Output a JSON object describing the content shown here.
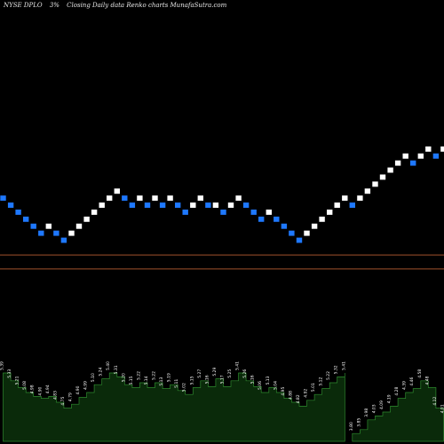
{
  "header": {
    "ticker": "NYSE DPLO",
    "pct": "3%",
    "desc": "Closing Daily data  Renko  charts MunafaSutra.com"
  },
  "chart_data": {
    "type": "renko",
    "up_color": "#ffffff",
    "down_color": "#1e78ff",
    "hline_color": "#a0522d",
    "volume_fill": "#0a2a0a",
    "volume_stroke": "#2e8b2e",
    "hlines_level": [
      -1.5,
      0.5
    ],
    "bricks": [
      {
        "d": "down",
        "v": 9
      },
      {
        "d": "down",
        "v": 8
      },
      {
        "d": "down",
        "v": 7
      },
      {
        "d": "down",
        "v": 6
      },
      {
        "d": "down",
        "v": 5
      },
      {
        "d": "down",
        "v": 4
      },
      {
        "d": "up",
        "v": 5
      },
      {
        "d": "down",
        "v": 4
      },
      {
        "d": "down",
        "v": 3
      },
      {
        "d": "up",
        "v": 4
      },
      {
        "d": "up",
        "v": 5
      },
      {
        "d": "up",
        "v": 6
      },
      {
        "d": "up",
        "v": 7
      },
      {
        "d": "up",
        "v": 8
      },
      {
        "d": "up",
        "v": 9
      },
      {
        "d": "up",
        "v": 10
      },
      {
        "d": "down",
        "v": 9
      },
      {
        "d": "down",
        "v": 8
      },
      {
        "d": "up",
        "v": 9
      },
      {
        "d": "down",
        "v": 8
      },
      {
        "d": "up",
        "v": 9
      },
      {
        "d": "down",
        "v": 8
      },
      {
        "d": "up",
        "v": 9
      },
      {
        "d": "down",
        "v": 8
      },
      {
        "d": "down",
        "v": 7
      },
      {
        "d": "up",
        "v": 8
      },
      {
        "d": "up",
        "v": 9
      },
      {
        "d": "down",
        "v": 8
      },
      {
        "d": "up",
        "v": 8
      },
      {
        "d": "down",
        "v": 7
      },
      {
        "d": "up",
        "v": 8
      },
      {
        "d": "up",
        "v": 9
      },
      {
        "d": "down",
        "v": 8
      },
      {
        "d": "down",
        "v": 7
      },
      {
        "d": "down",
        "v": 6
      },
      {
        "d": "up",
        "v": 7
      },
      {
        "d": "down",
        "v": 6
      },
      {
        "d": "down",
        "v": 5
      },
      {
        "d": "down",
        "v": 4
      },
      {
        "d": "down",
        "v": 3
      },
      {
        "d": "up",
        "v": 4
      },
      {
        "d": "up",
        "v": 5
      },
      {
        "d": "up",
        "v": 6
      },
      {
        "d": "up",
        "v": 7
      },
      {
        "d": "up",
        "v": 8
      },
      {
        "d": "up",
        "v": 9
      },
      {
        "d": "down",
        "v": 8
      },
      {
        "d": "up",
        "v": 9
      },
      {
        "d": "up",
        "v": 10
      },
      {
        "d": "up",
        "v": 11
      },
      {
        "d": "up",
        "v": 12
      },
      {
        "d": "up",
        "v": 13
      },
      {
        "d": "up",
        "v": 14
      },
      {
        "d": "up",
        "v": 15
      },
      {
        "d": "down",
        "v": 14
      },
      {
        "d": "up",
        "v": 15
      },
      {
        "d": "up",
        "v": 16
      },
      {
        "d": "down",
        "v": 15
      },
      {
        "d": "up",
        "v": 16
      }
    ],
    "volume": [
      {
        "v": 0.7,
        "label": "5.39"
      },
      {
        "v": 0.62,
        "label": "5.33"
      },
      {
        "v": 0.55,
        "label": "5.21"
      },
      {
        "v": 0.5,
        "label": "5.08"
      },
      {
        "v": 0.46,
        "label": "4.98"
      },
      {
        "v": 0.44,
        "label": "4.90"
      },
      {
        "v": 0.46,
        "label": "4.94"
      },
      {
        "v": 0.4,
        "label": "4.83"
      },
      {
        "v": 0.34,
        "label": "4.75"
      },
      {
        "v": 0.38,
        "label": "4.79"
      },
      {
        "v": 0.45,
        "label": "4.90"
      },
      {
        "v": 0.5,
        "label": "4.99"
      },
      {
        "v": 0.58,
        "label": "5.10"
      },
      {
        "v": 0.64,
        "label": "5.24"
      },
      {
        "v": 0.7,
        "label": "5.40"
      },
      {
        "v": 0.66,
        "label": "5.31"
      },
      {
        "v": 0.58,
        "label": "5.20"
      },
      {
        "v": 0.55,
        "label": "5.15"
      },
      {
        "v": 0.6,
        "label": "5.22"
      },
      {
        "v": 0.55,
        "label": "5.14"
      },
      {
        "v": 0.6,
        "label": "5.22"
      },
      {
        "v": 0.54,
        "label": "5.13"
      },
      {
        "v": 0.58,
        "label": "5.19"
      },
      {
        "v": 0.52,
        "label": "5.11"
      },
      {
        "v": 0.48,
        "label": "5.02"
      },
      {
        "v": 0.55,
        "label": "5.15"
      },
      {
        "v": 0.62,
        "label": "5.27"
      },
      {
        "v": 0.56,
        "label": "5.16"
      },
      {
        "v": 0.64,
        "label": "5.29"
      },
      {
        "v": 0.56,
        "label": "5.17"
      },
      {
        "v": 0.62,
        "label": "5.25"
      },
      {
        "v": 0.7,
        "label": "5.41"
      },
      {
        "v": 0.62,
        "label": "5.26"
      },
      {
        "v": 0.56,
        "label": "5.16"
      },
      {
        "v": 0.5,
        "label": "5.06"
      },
      {
        "v": 0.55,
        "label": "5.13"
      },
      {
        "v": 0.5,
        "label": "5.04"
      },
      {
        "v": 0.44,
        "label": "4.95"
      },
      {
        "v": 0.4,
        "label": "4.88"
      },
      {
        "v": 0.36,
        "label": "4.82"
      },
      {
        "v": 0.42,
        "label": "4.92"
      },
      {
        "v": 0.48,
        "label": "5.01"
      },
      {
        "v": 0.54,
        "label": "5.12"
      },
      {
        "v": 0.6,
        "label": "5.22"
      },
      {
        "v": 0.66,
        "label": "5.32"
      },
      {
        "v": 0.7,
        "label": "5.41"
      },
      {
        "v": 0.08,
        "label": "3.80"
      },
      {
        "v": 0.12,
        "label": "3.85"
      },
      {
        "v": 0.22,
        "label": "3.98"
      },
      {
        "v": 0.26,
        "label": "4.03"
      },
      {
        "v": 0.3,
        "label": "4.09"
      },
      {
        "v": 0.36,
        "label": "4.19"
      },
      {
        "v": 0.44,
        "label": "4.28"
      },
      {
        "v": 0.5,
        "label": "4.39"
      },
      {
        "v": 0.54,
        "label": "4.46"
      },
      {
        "v": 0.62,
        "label": "4.58"
      },
      {
        "v": 0.55,
        "label": "4.48"
      },
      {
        "v": 0.34,
        "label": "4.12"
      },
      {
        "v": 0.26,
        "label": "4.01"
      }
    ]
  }
}
